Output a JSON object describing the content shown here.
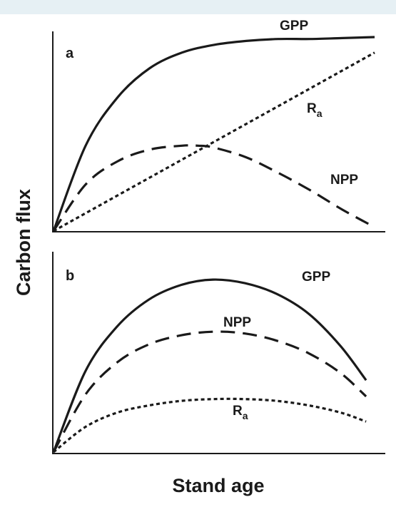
{
  "colors": {
    "background": "#ffffff",
    "top_band": "#e6f0f4",
    "ink": "#1a1a1a"
  },
  "chart_data": [
    {
      "type": "line",
      "panel_label": "a",
      "xlabel": "Stand age",
      "ylabel": "Carbon flux",
      "xlim": [
        0,
        100
      ],
      "ylim": [
        0,
        100
      ],
      "axis_ticks": false,
      "grid": false,
      "series": [
        {
          "name": "GPP",
          "line_style": "solid",
          "label_main": "GPP",
          "label_sub": "",
          "x": [
            0,
            10,
            20,
            30,
            40,
            50,
            60,
            70,
            80,
            90,
            100
          ],
          "y": [
            0,
            44,
            69,
            84,
            92,
            96,
            98,
            99,
            99,
            99.5,
            100
          ]
        },
        {
          "name": "Ra",
          "line_style": "dotted",
          "label_main": "R",
          "label_sub": "a",
          "x": [
            0,
            100
          ],
          "y": [
            0,
            92
          ]
        },
        {
          "name": "NPP",
          "line_style": "dashed",
          "label_main": "NPP",
          "label_sub": "",
          "x": [
            0,
            10,
            20,
            30,
            40,
            45,
            50,
            60,
            70,
            80,
            90,
            100
          ],
          "y": [
            0,
            24,
            36,
            42,
            44,
            44,
            43,
            38,
            30,
            21,
            11,
            2
          ]
        }
      ]
    },
    {
      "type": "line",
      "panel_label": "b",
      "xlabel": "Stand age",
      "ylabel": "Carbon flux",
      "xlim": [
        0,
        100
      ],
      "ylim": [
        0,
        100
      ],
      "axis_ticks": false,
      "grid": false,
      "series": [
        {
          "name": "GPP",
          "line_style": "solid",
          "label_main": "GPP",
          "label_sub": "",
          "x": [
            0,
            10,
            20,
            30,
            40,
            50,
            60,
            70,
            80,
            90,
            98
          ],
          "y": [
            0,
            45,
            70,
            85,
            93,
            96,
            94,
            88,
            77,
            59,
            40
          ]
        },
        {
          "name": "NPP",
          "line_style": "dashed",
          "label_main": "NPP",
          "label_sub": "",
          "x": [
            0,
            10,
            20,
            30,
            40,
            50,
            60,
            70,
            80,
            90,
            98
          ],
          "y": [
            0,
            32,
            50,
            60,
            65,
            67,
            66,
            62,
            55,
            44,
            31
          ]
        },
        {
          "name": "Ra",
          "line_style": "dotted",
          "label_main": "R",
          "label_sub": "a",
          "x": [
            0,
            10,
            20,
            30,
            40,
            50,
            60,
            70,
            80,
            90,
            98
          ],
          "y": [
            0,
            14,
            22,
            26,
            28.5,
            29.5,
            29.5,
            28.5,
            26,
            22,
            17
          ]
        }
      ]
    }
  ]
}
